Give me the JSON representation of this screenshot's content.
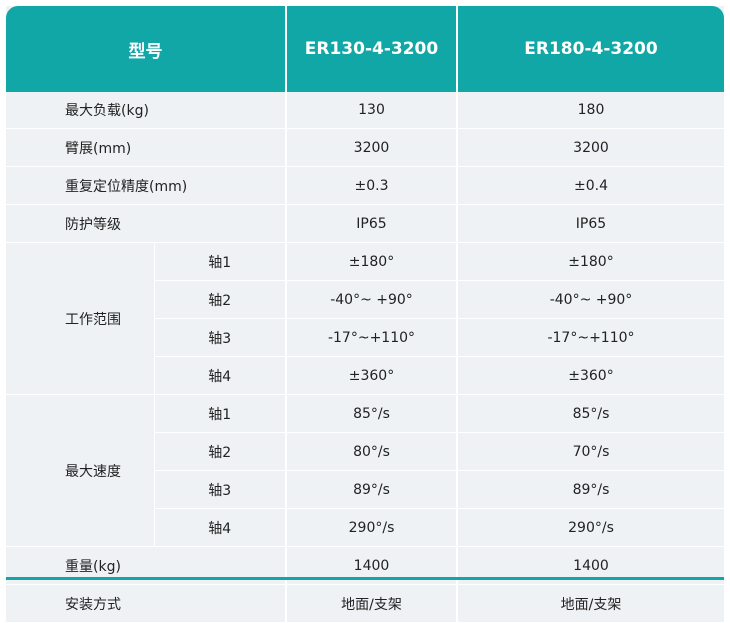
{
  "header": {
    "model_label": "型号",
    "model_a": "ER130-4-3200",
    "model_b": "ER180-4-3200"
  },
  "rows": {
    "max_load": {
      "label": "最大负载(kg)",
      "a": "130",
      "b": "180"
    },
    "reach": {
      "label": "臂展(mm)",
      "a": "3200",
      "b": "3200"
    },
    "repeatability": {
      "label": "重复定位精度(mm)",
      "a": "±0.3",
      "b": "±0.4"
    },
    "protection": {
      "label": "防护等级",
      "a": "IP65",
      "b": "IP65"
    },
    "weight": {
      "label": "重量(kg)",
      "a": "1400",
      "b": "1400"
    },
    "mounting": {
      "label": "安装方式",
      "a": "地面/支架",
      "b": "地面/支架"
    }
  },
  "work_range": {
    "label": "工作范围",
    "axes": [
      {
        "axis": "轴1",
        "a": "±180°",
        "b": "±180°"
      },
      {
        "axis": "轴2",
        "a": "-40°~ +90°",
        "b": "-40°~ +90°"
      },
      {
        "axis": "轴3",
        "a": "-17°~+110°",
        "b": "-17°~+110°"
      },
      {
        "axis": "轴4",
        "a": "±360°",
        "b": "±360°"
      }
    ]
  },
  "max_speed": {
    "label": "最大速度",
    "axes": [
      {
        "axis": "轴1",
        "a": "85°/s",
        "b": "85°/s"
      },
      {
        "axis": "轴2",
        "a": "80°/s",
        "b": "70°/s"
      },
      {
        "axis": "轴3",
        "a": "89°/s",
        "b": "89°/s"
      },
      {
        "axis": "轴4",
        "a": "290°/s",
        "b": "290°/s"
      }
    ]
  },
  "colors": {
    "accent": "#12a7a7",
    "cell_bg": "#eef2f4"
  }
}
